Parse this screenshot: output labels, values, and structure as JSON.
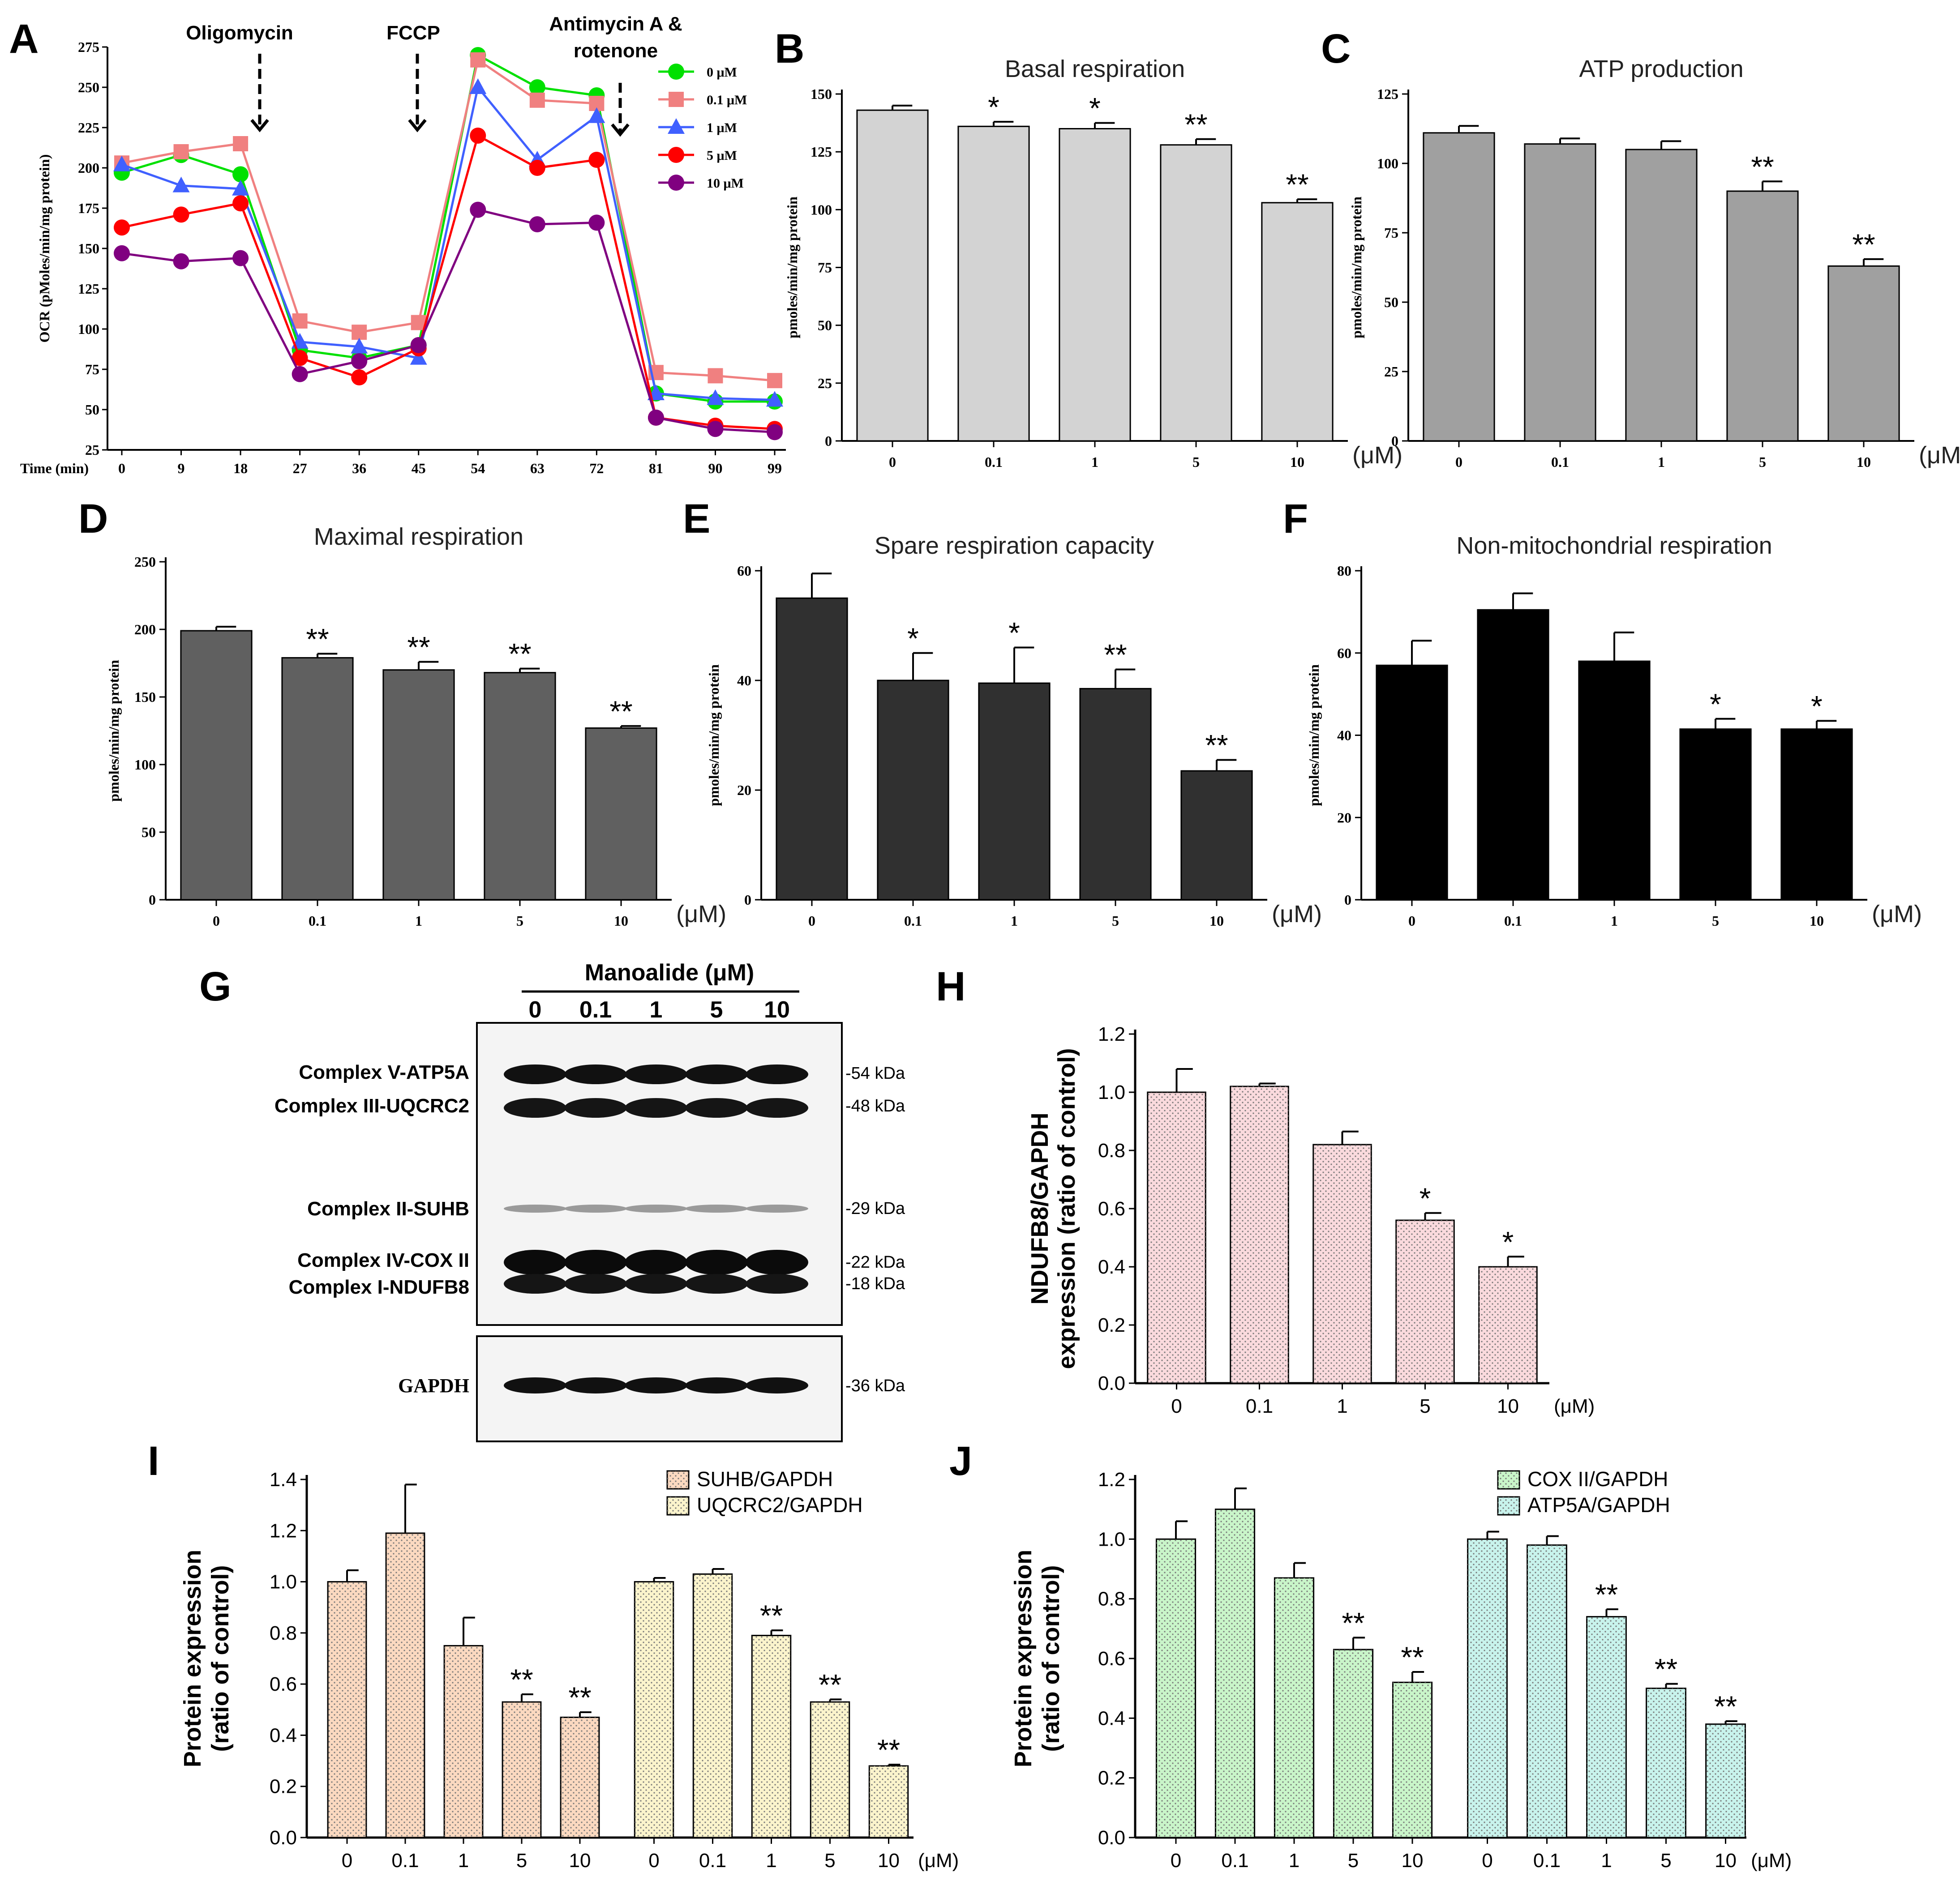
{
  "panels": {
    "A": {
      "letter": "A",
      "chart_data": {
        "type": "line",
        "title": "",
        "ylabel": "OCR (pMoles/min/mg protein)",
        "xlabel": "Time (min)",
        "x": [
          0,
          9,
          18,
          27,
          36,
          45,
          54,
          63,
          72,
          81,
          90,
          99
        ],
        "ylim": [
          25,
          275
        ],
        "yticks": [
          25,
          50,
          75,
          100,
          125,
          150,
          175,
          200,
          225,
          250,
          275
        ],
        "series": [
          {
            "name": "0 μM",
            "color": "#00e000",
            "marker": "circle",
            "values": [
              197,
              208,
              196,
              87,
              82,
              90,
              270,
              250,
              245,
              60,
              55,
              55
            ]
          },
          {
            "name": "0.1 μM",
            "color": "#f08080",
            "marker": "square",
            "values": [
              203,
              210,
              215,
              105,
              98,
              104,
              267,
              242,
              240,
              73,
              71,
              68
            ]
          },
          {
            "name": "1 μM",
            "color": "#4060ff",
            "marker": "triangle",
            "values": [
              202,
              189,
              187,
              92,
              89,
              82,
              250,
              205,
              232,
              60,
              57,
              56
            ]
          },
          {
            "name": "5 μM",
            "color": "#ff0000",
            "marker": "circle",
            "values": [
              163,
              171,
              178,
              82,
              70,
              88,
              220,
              200,
              205,
              45,
              40,
              38
            ]
          },
          {
            "name": "10 μM",
            "color": "#800080",
            "marker": "circle",
            "values": [
              147,
              142,
              144,
              72,
              80,
              90,
              174,
              165,
              166,
              45,
              38,
              36
            ]
          }
        ],
        "annotations": [
          "Oligomycin",
          "FCCP",
          "Antimycin A &",
          "rotenone"
        ]
      }
    },
    "B": {
      "letter": "B",
      "chart_data": {
        "type": "bar",
        "title": "Basal respiration",
        "ylabel": "pmoles/min/mg protein",
        "categories": [
          "0",
          "0.1",
          "1",
          "5",
          "10"
        ],
        "unit": "(μM)",
        "values": [
          143,
          136,
          135,
          128,
          103
        ],
        "errors": [
          2,
          2,
          2.5,
          2.5,
          1.5
        ],
        "significance": [
          "",
          "*",
          "*",
          "**",
          "**"
        ],
        "ylim": [
          0,
          150
        ],
        "yticks": [
          0,
          25,
          50,
          75,
          100,
          125,
          150
        ],
        "color": "#d3d3d3"
      }
    },
    "C": {
      "letter": "C",
      "chart_data": {
        "type": "bar",
        "title": "ATP production",
        "ylabel": "pmoles/min/mg protein",
        "categories": [
          "0",
          "0.1",
          "1",
          "5",
          "10"
        ],
        "unit": "(μM)",
        "values": [
          111,
          107,
          105,
          90,
          63
        ],
        "errors": [
          2.5,
          2,
          3,
          3.5,
          2.5
        ],
        "significance": [
          "",
          "",
          "",
          "**",
          "**"
        ],
        "ylim": [
          0,
          125
        ],
        "yticks": [
          0,
          25,
          50,
          75,
          100,
          125
        ],
        "color": "#a0a0a0"
      }
    },
    "D": {
      "letter": "D",
      "chart_data": {
        "type": "bar",
        "title": "Maximal respiration",
        "ylabel": "pmoles/min/mg protein",
        "categories": [
          "0",
          "0.1",
          "1",
          "5",
          "10"
        ],
        "unit": "(μM)",
        "values": [
          199,
          179,
          170,
          168,
          127
        ],
        "errors": [
          3,
          3,
          6,
          3,
          1.5
        ],
        "significance": [
          "",
          "**",
          "**",
          "**",
          "**"
        ],
        "ylim": [
          0,
          250
        ],
        "yticks": [
          0,
          50,
          100,
          150,
          200,
          250
        ],
        "color": "#606060"
      }
    },
    "E": {
      "letter": "E",
      "chart_data": {
        "type": "bar",
        "title": "Spare respiration capacity",
        "ylabel": "pmoles/min/mg protein",
        "categories": [
          "0",
          "0.1",
          "1",
          "5",
          "10"
        ],
        "unit": "(μM)",
        "values": [
          55,
          40,
          39.5,
          38.5,
          23.5
        ],
        "errors": [
          4.5,
          5,
          6.5,
          3.5,
          2
        ],
        "significance": [
          "",
          "*",
          "*",
          "**",
          "**"
        ],
        "ylim": [
          0,
          60
        ],
        "yticks": [
          0,
          20,
          40,
          60
        ],
        "color": "#303030"
      }
    },
    "F": {
      "letter": "F",
      "chart_data": {
        "type": "bar",
        "title": "Non-mitochondrial respiration",
        "ylabel": "pmoles/min/mg protein",
        "categories": [
          "0",
          "0.1",
          "1",
          "5",
          "10"
        ],
        "unit": "(μM)",
        "values": [
          57,
          70.5,
          58,
          41.5,
          41.5
        ],
        "errors": [
          6,
          4,
          7,
          2.5,
          2
        ],
        "significance": [
          "",
          "",
          "",
          "*",
          "*"
        ],
        "ylim": [
          0,
          80
        ],
        "yticks": [
          0,
          20,
          40,
          60,
          80
        ],
        "color": "#000000"
      }
    },
    "G": {
      "letter": "G",
      "header": "Manoalide (μM)",
      "lanes": [
        "0",
        "0.1",
        "1",
        "5",
        "10"
      ],
      "bands": [
        {
          "label": "Complex V-ATP5A",
          "kda": "-54 kDa"
        },
        {
          "label": "Complex III-UQCRC2",
          "kda": "-48 kDa"
        },
        {
          "label": "Complex II-SUHB",
          "kda": "-29 kDa"
        },
        {
          "label": "Complex IV-COX II",
          "kda": "-22 kDa"
        },
        {
          "label": "Complex I-NDUFB8",
          "kda": "-18 kDa"
        }
      ],
      "loading": {
        "label": "GAPDH",
        "kda": "-36 kDa"
      }
    },
    "H": {
      "letter": "H",
      "chart_data": {
        "type": "bar",
        "title": "",
        "ylabel_line1": "NDUFB8/GAPDH",
        "ylabel_line2": "expression (ratio of control)",
        "categories": [
          "0",
          "0.1",
          "1",
          "5",
          "10"
        ],
        "unit": "(μM)",
        "values": [
          1.0,
          1.02,
          0.82,
          0.56,
          0.4
        ],
        "errors": [
          0.08,
          0.01,
          0.045,
          0.025,
          0.035
        ],
        "significance": [
          "",
          "",
          "",
          "*",
          "*"
        ],
        "ylim": [
          0,
          1.2
        ],
        "yticks": [
          "0.0",
          "0.2",
          "0.4",
          "0.6",
          "0.8",
          "1.0",
          "1.2"
        ],
        "color": "#fadadd"
      }
    },
    "I": {
      "letter": "I",
      "chart_data": {
        "type": "bar",
        "ylabel_line1": "Protein expression",
        "ylabel_line2": "(ratio of control)",
        "categories": [
          "0",
          "0.1",
          "1",
          "5",
          "10"
        ],
        "unit": "(μM)",
        "ylim": [
          0,
          1.4
        ],
        "yticks": [
          "0.0",
          "0.2",
          "0.4",
          "0.6",
          "0.8",
          "1.0",
          "1.2",
          "1.4"
        ],
        "series": [
          {
            "name": "SUHB/GAPDH",
            "color": "#fbd9c0",
            "values": [
              1.0,
              1.19,
              0.75,
              0.53,
              0.47
            ],
            "errors": [
              0.045,
              0.19,
              0.11,
              0.03,
              0.02
            ],
            "significance": [
              "",
              "",
              "",
              "**",
              "**"
            ]
          },
          {
            "name": "UQCRC2/GAPDH",
            "color": "#fbf4cc",
            "values": [
              1.0,
              1.03,
              0.79,
              0.53,
              0.28
            ],
            "errors": [
              0.015,
              0.02,
              0.02,
              0.01,
              0.005
            ],
            "significance": [
              "",
              "",
              "**",
              "**",
              "**"
            ]
          }
        ]
      }
    },
    "J": {
      "letter": "J",
      "chart_data": {
        "type": "bar",
        "ylabel_line1": "Protein expression",
        "ylabel_line2": "(ratio of control)",
        "categories": [
          "0",
          "0.1",
          "1",
          "5",
          "10"
        ],
        "unit": "(μM)",
        "ylim": [
          0,
          1.2
        ],
        "yticks": [
          "0.0",
          "0.2",
          "0.4",
          "0.6",
          "0.8",
          "1.0",
          "1.2"
        ],
        "series": [
          {
            "name": "COX II/GAPDH",
            "color": "#c9f5c9",
            "values": [
              1.0,
              1.1,
              0.87,
              0.63,
              0.52
            ],
            "errors": [
              0.06,
              0.07,
              0.05,
              0.04,
              0.035
            ],
            "significance": [
              "",
              "",
              "",
              "**",
              "**"
            ]
          },
          {
            "name": "ATP5A/GAPDH",
            "color": "#c8f3ec",
            "values": [
              1.0,
              0.98,
              0.74,
              0.5,
              0.38
            ],
            "errors": [
              0.025,
              0.03,
              0.025,
              0.015,
              0.01
            ],
            "significance": [
              "",
              "",
              "**",
              "**",
              "**"
            ]
          }
        ]
      }
    }
  }
}
